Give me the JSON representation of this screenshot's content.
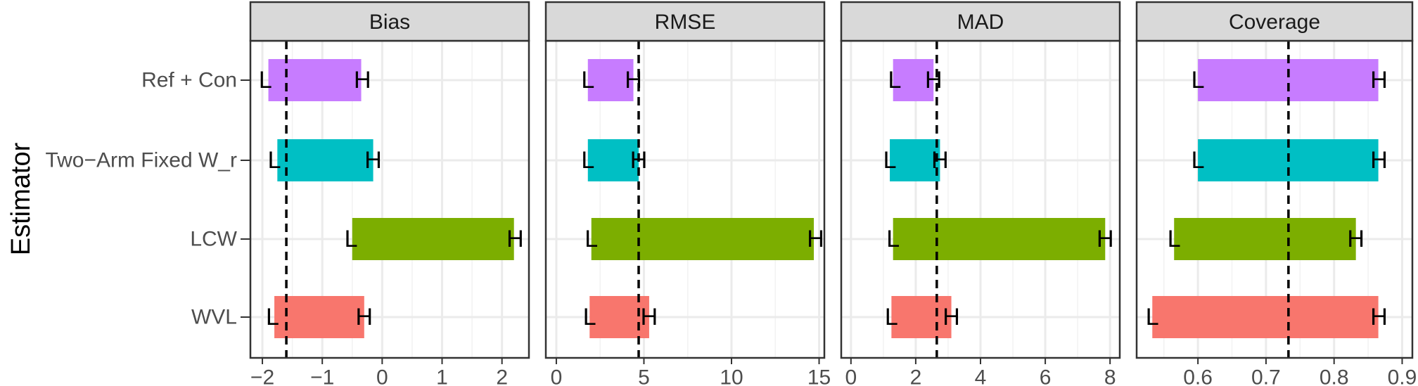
{
  "chart_data": {
    "type": "bar",
    "orientation": "horizontal",
    "ylabel": "Estimator",
    "categories": [
      "Ref + Con",
      "Two−Arm Fixed W_r",
      "LCW",
      "WVL"
    ],
    "colors": [
      "#C77CFF",
      "#00BFC4",
      "#7CAE00",
      "#F8766D"
    ],
    "marker_low": "L",
    "marker_high": "H",
    "grid": true,
    "panels": [
      {
        "title": "Bias",
        "xlim": [
          -2.2,
          2.45
        ],
        "ticks": [
          -2,
          -1,
          0,
          1,
          2
        ],
        "tick_labels": [
          "−2",
          "−1",
          "0",
          "1",
          "2"
        ],
        "reference_line": -1.6,
        "bars": [
          {
            "category": "Ref + Con",
            "start": -1.9,
            "end": -0.35,
            "L": -1.95,
            "H": -0.33
          },
          {
            "category": "Two−Arm Fixed W_r",
            "start": -1.75,
            "end": -0.15,
            "L": -1.8,
            "H": -0.15
          },
          {
            "category": "LCW",
            "start": -0.5,
            "end": 2.2,
            "L": -0.52,
            "H": 2.22
          },
          {
            "category": "WVL",
            "start": -1.8,
            "end": -0.3,
            "L": -1.83,
            "H": -0.3
          }
        ]
      },
      {
        "title": "RMSE",
        "xlim": [
          -0.6,
          15.3
        ],
        "ticks": [
          0,
          5,
          10,
          15
        ],
        "tick_labels": [
          "0",
          "5",
          "10",
          "15"
        ],
        "reference_line": 4.7,
        "bars": [
          {
            "category": "Ref + Con",
            "start": 1.8,
            "end": 4.4,
            "L": 1.8,
            "H": 4.4
          },
          {
            "category": "Two−Arm Fixed W_r",
            "start": 1.8,
            "end": 4.7,
            "L": 1.8,
            "H": 4.7
          },
          {
            "category": "LCW",
            "start": 2.0,
            "end": 14.7,
            "L": 2.0,
            "H": 14.8
          },
          {
            "category": "WVL",
            "start": 1.9,
            "end": 5.3,
            "L": 1.9,
            "H": 5.3
          }
        ]
      },
      {
        "title": "MAD",
        "xlim": [
          -0.3,
          8.3
        ],
        "ticks": [
          0,
          2,
          4,
          6,
          8
        ],
        "tick_labels": [
          "0",
          "2",
          "4",
          "6",
          "8"
        ],
        "reference_line": 2.65,
        "bars": [
          {
            "category": "Ref + Con",
            "start": 1.3,
            "end": 2.55,
            "L": 1.35,
            "H": 2.55
          },
          {
            "category": "Two−Arm Fixed W_r",
            "start": 1.2,
            "end": 2.75,
            "L": 1.2,
            "H": 2.75
          },
          {
            "category": "LCW",
            "start": 1.3,
            "end": 7.85,
            "L": 1.3,
            "H": 7.85
          },
          {
            "category": "WVL",
            "start": 1.25,
            "end": 3.1,
            "L": 1.25,
            "H": 3.1
          }
        ]
      },
      {
        "title": "Coverage",
        "xlim": [
          0.51,
          0.915
        ],
        "ticks": [
          0.6,
          0.7,
          0.8,
          0.9
        ],
        "tick_labels": [
          "0.6",
          "0.7",
          "0.8",
          "0.9"
        ],
        "reference_line": 0.733,
        "bars": [
          {
            "category": "Ref + Con",
            "start": 0.6,
            "end": 0.865,
            "L": 0.6,
            "H": 0.866
          },
          {
            "category": "Two−Arm Fixed W_r",
            "start": 0.6,
            "end": 0.865,
            "L": 0.6,
            "H": 0.866
          },
          {
            "category": "LCW",
            "start": 0.565,
            "end": 0.832,
            "L": 0.565,
            "H": 0.832
          },
          {
            "category": "WVL",
            "start": 0.533,
            "end": 0.865,
            "L": 0.533,
            "H": 0.866
          }
        ]
      }
    ]
  }
}
